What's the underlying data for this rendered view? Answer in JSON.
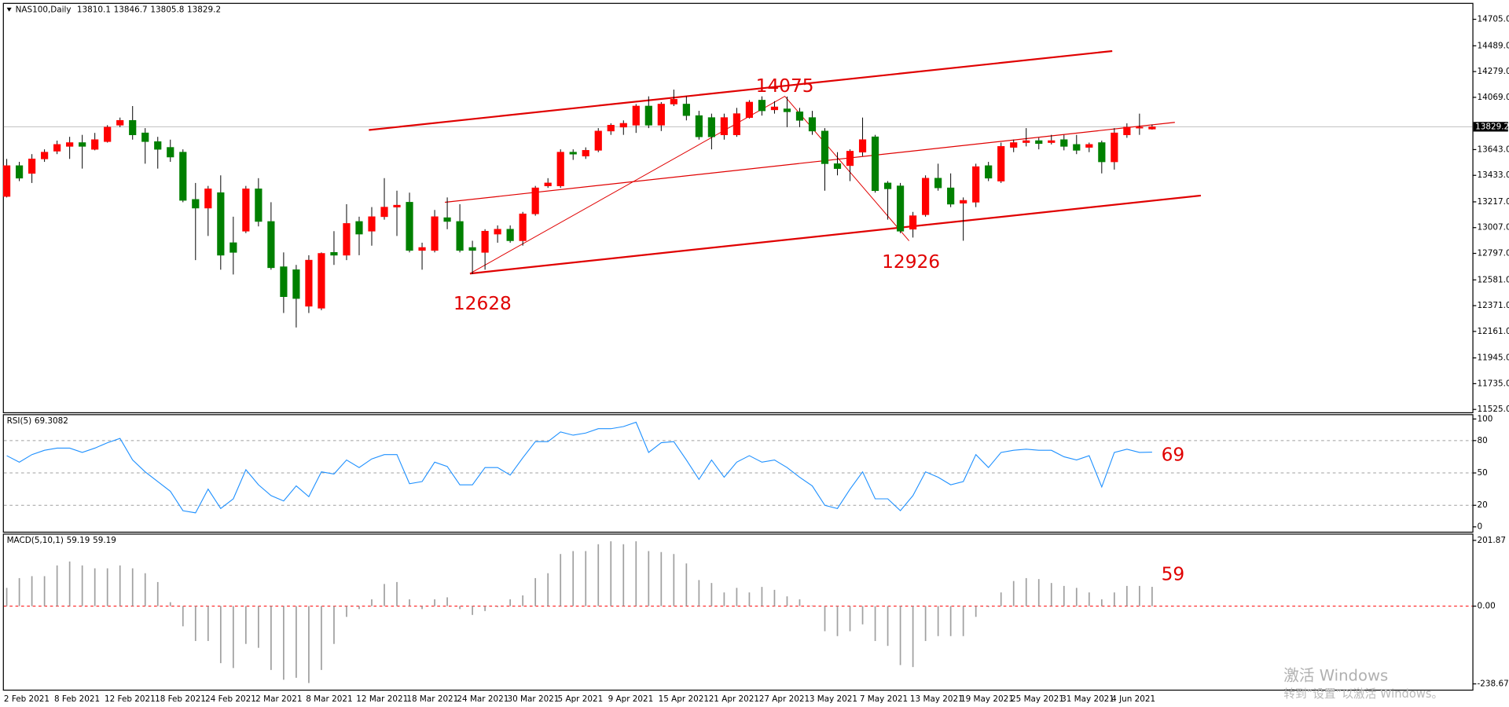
{
  "chart_data": [
    {
      "type": "candlestick",
      "title": "NAS100,Daily",
      "categories": [
        "2 Feb 2021",
        null,
        null,
        null,
        "8 Feb 2021",
        null,
        null,
        null,
        "12 Feb 2021",
        null,
        null,
        null,
        "18 Feb 2021",
        null,
        null,
        null,
        "24 Feb 2021",
        null,
        null,
        null,
        "2 Mar 2021",
        null,
        null,
        null,
        "8 Mar 2021",
        null,
        null,
        null,
        "12 Mar 2021",
        null,
        null,
        null,
        "18 Mar 2021",
        null,
        null,
        null,
        "24 Mar 2021",
        null,
        null,
        null,
        "30 Mar 2021",
        null,
        null,
        null,
        "5 Apr 2021",
        null,
        null,
        null,
        "9 Apr 2021",
        null,
        null,
        null,
        "15 Apr 2021",
        null,
        null,
        null,
        "21 Apr 2021",
        null,
        null,
        null,
        "27 Apr 2021",
        null,
        null,
        null,
        "3 May 2021",
        null,
        null,
        null,
        "7 May 2021",
        null,
        null,
        null,
        "13 May 2021",
        null,
        null,
        null,
        "19 May 2021",
        null,
        null,
        null,
        "25 May 2021",
        null,
        null,
        null,
        "31 May 2021",
        null,
        null,
        null,
        "4 Jun 2021",
        null,
        null,
        null
      ],
      "open": [
        13261,
        13512,
        13449,
        13567,
        13630,
        13669,
        13700,
        13645,
        13708,
        13842,
        13881,
        13779,
        13708,
        13661,
        13622,
        13237,
        13166,
        13292,
        12884,
        12978,
        13323,
        13057,
        12688,
        12664,
        12366,
        12350,
        12805,
        12782,
        13057,
        12978,
        13096,
        13174,
        13214,
        12821,
        12821,
        13088,
        13057,
        12845,
        12805,
        12954,
        12994,
        12900,
        13119,
        13347,
        13347,
        13622,
        13590,
        13637,
        13794,
        13826,
        13842,
        13998,
        13842,
        14014,
        14014,
        13920,
        13904,
        13763,
        13763,
        13904,
        14046,
        13967,
        13975,
        13951,
        13904,
        13794,
        13528,
        13512,
        13622,
        13747,
        13371,
        13347,
        12994,
        13112,
        13410,
        13331,
        13206,
        13214,
        13512,
        13386,
        13661,
        13700,
        13716,
        13700,
        13724,
        13685,
        13661,
        13700,
        13543,
        13763,
        13818,
        13810.1
      ],
      "high": [
        13567,
        13543,
        13606,
        13645,
        13716,
        13747,
        13763,
        13779,
        13842,
        13904,
        13998,
        13818,
        13747,
        13724,
        13645,
        13371,
        13347,
        13433,
        13096,
        13347,
        13410,
        13214,
        12805,
        12703,
        12782,
        12805,
        12978,
        13198,
        13096,
        13174,
        13410,
        13308,
        13292,
        12884,
        13151,
        13253,
        13198,
        12900,
        12994,
        13025,
        13025,
        13135,
        13347,
        13410,
        13645,
        13645,
        13661,
        13818,
        13857,
        13881,
        14014,
        14077,
        14030,
        14132,
        14077,
        13959,
        13936,
        13936,
        13983,
        14046,
        14077,
        14038,
        14075,
        13983,
        13959,
        13818,
        13622,
        13645,
        13904,
        13763,
        13386,
        13371,
        13135,
        13433,
        13528,
        13449,
        13253,
        13528,
        13543,
        13700,
        13724,
        13818,
        13739,
        13763,
        13763,
        13763,
        13700,
        13716,
        13818,
        13857,
        13936,
        13846.7
      ],
      "low": [
        13253,
        13386,
        13371,
        13543,
        13606,
        13567,
        13488,
        13637,
        13700,
        13826,
        13724,
        13528,
        13488,
        13543,
        13214,
        12742,
        12939,
        12664,
        12625,
        12962,
        13017,
        12664,
        12311,
        12193,
        12311,
        12334,
        12703,
        12742,
        12782,
        12860,
        13072,
        12939,
        12805,
        12664,
        12805,
        12994,
        12805,
        12628,
        12664,
        12884,
        12884,
        12860,
        13104,
        13331,
        13331,
        13559,
        13567,
        13622,
        13763,
        13763,
        13779,
        13818,
        13794,
        13998,
        13881,
        13724,
        13645,
        13724,
        13747,
        13896,
        13920,
        13936,
        13826,
        13826,
        13763,
        13308,
        13433,
        13386,
        13590,
        13292,
        13072,
        12962,
        12926,
        13096,
        13308,
        13174,
        12900,
        13174,
        13386,
        13371,
        13622,
        13669,
        13645,
        13685,
        13637,
        13606,
        13622,
        13449,
        13480,
        13739,
        13763,
        13805.8
      ],
      "close": [
        13512,
        13410,
        13567,
        13622,
        13685,
        13700,
        13669,
        13724,
        13826,
        13881,
        13763,
        13708,
        13645,
        13582,
        13229,
        13166,
        13323,
        12782,
        12805,
        13323,
        13057,
        12680,
        12444,
        12429,
        12742,
        12797,
        12782,
        13041,
        12954,
        13096,
        13174,
        13190,
        12821,
        12845,
        13096,
        13057,
        12821,
        12821,
        12978,
        12994,
        12900,
        13119,
        13331,
        13371,
        13622,
        13606,
        13637,
        13794,
        13842,
        13857,
        13998,
        13842,
        14014,
        14053,
        13920,
        13747,
        13747,
        13904,
        13936,
        14030,
        13959,
        13991,
        13951,
        13881,
        13794,
        13528,
        13488,
        13630,
        13724,
        13308,
        13323,
        12978,
        13104,
        13410,
        13331,
        13198,
        13229,
        13504,
        13410,
        13669,
        13700,
        13716,
        13692,
        13716,
        13669,
        13637,
        13685,
        13543,
        13779,
        13826,
        13826,
        13829.2
      ],
      "up_color": "#ff0000",
      "down_color": "#008000",
      "ylim": [
        11502,
        14823
      ],
      "yticks": [
        {
          "value": 14705,
          "label": "14705.0"
        },
        {
          "value": 14489,
          "label": "14489.0"
        },
        {
          "value": 14279,
          "label": "14279.0"
        },
        {
          "value": 14069,
          "label": "14069.0"
        },
        {
          "value": 13643,
          "label": "13643.0"
        },
        {
          "value": 13433,
          "label": "13433.0"
        },
        {
          "value": 13217,
          "label": "13217.0"
        },
        {
          "value": 13007,
          "label": "13007.0"
        },
        {
          "value": 12797,
          "label": "12797.0"
        },
        {
          "value": 12581,
          "label": "12581.0"
        },
        {
          "value": 12371,
          "label": "12371.0"
        },
        {
          "value": 12161,
          "label": "12161.0"
        },
        {
          "value": 11945,
          "label": "11945.0"
        },
        {
          "value": 11735,
          "label": "11735.0"
        },
        {
          "value": 11525,
          "label": "11525.0"
        }
      ],
      "current_price_line": true,
      "annotations": [
        "14075",
        "12628",
        "12926"
      ]
    },
    {
      "type": "line",
      "title": "RSI(5)",
      "color": "#1e90ff",
      "values": [
        66,
        60,
        67,
        71,
        73,
        73,
        69,
        73,
        78,
        82,
        62,
        51,
        42,
        33,
        15,
        13,
        35,
        17,
        26,
        53,
        39,
        29,
        24,
        38,
        28,
        51,
        49,
        62,
        55,
        63,
        67,
        67,
        40,
        42,
        60,
        56,
        39,
        39,
        55,
        55,
        48,
        64,
        79,
        79,
        88,
        85,
        87,
        91,
        91,
        93,
        97,
        69,
        78,
        79,
        62,
        44,
        62,
        46,
        60,
        66,
        60,
        62,
        55,
        46,
        38,
        20,
        17,
        35,
        51,
        26,
        26,
        15,
        29,
        51,
        46,
        39,
        42,
        67,
        55,
        69,
        71,
        72,
        71,
        71,
        65,
        62,
        66,
        37,
        69,
        72,
        69,
        69.3082
      ],
      "ylim": [
        0,
        100
      ],
      "yticks": [
        100,
        80,
        50,
        20,
        0
      ],
      "grid": true,
      "grid_color": "#a0a0a0",
      "annotations": [
        "69"
      ]
    },
    {
      "type": "bar",
      "title": "MACD(5,10,1)",
      "color": "#a0a0a0",
      "values": [
        56,
        86,
        92,
        92,
        125,
        137,
        125,
        116,
        116,
        125,
        116,
        101,
        74,
        12,
        -62,
        -107,
        -107,
        -175,
        -190,
        -116,
        -128,
        -196,
        -226,
        -220,
        -236,
        -196,
        -116,
        -33,
        -9,
        21,
        68,
        74,
        21,
        -9,
        21,
        27,
        -9,
        -27,
        -15,
        -3,
        21,
        33,
        86,
        101,
        160,
        169,
        169,
        190,
        199,
        190,
        199,
        169,
        166,
        160,
        131,
        80,
        71,
        42,
        56,
        42,
        59,
        50,
        30,
        21,
        2,
        -77,
        -92,
        -77,
        -56,
        -107,
        -122,
        -181,
        -187,
        -107,
        -92,
        -92,
        -92,
        -33,
        -3,
        42,
        77,
        86,
        83,
        71,
        62,
        56,
        42,
        21,
        42,
        62,
        62,
        59.19
      ],
      "ylim": [
        -238.67,
        201.87
      ],
      "yticks": [
        201.87,
        {
          "value": 0,
          "label": "0.00"
        },
        -238.67
      ],
      "grid": true,
      "grid_color": "#ff0000",
      "annotations": [
        "59"
      ]
    }
  ],
  "watermark": [
    "激活 Windows",
    "转到“设置”以激活 Windows。"
  ]
}
